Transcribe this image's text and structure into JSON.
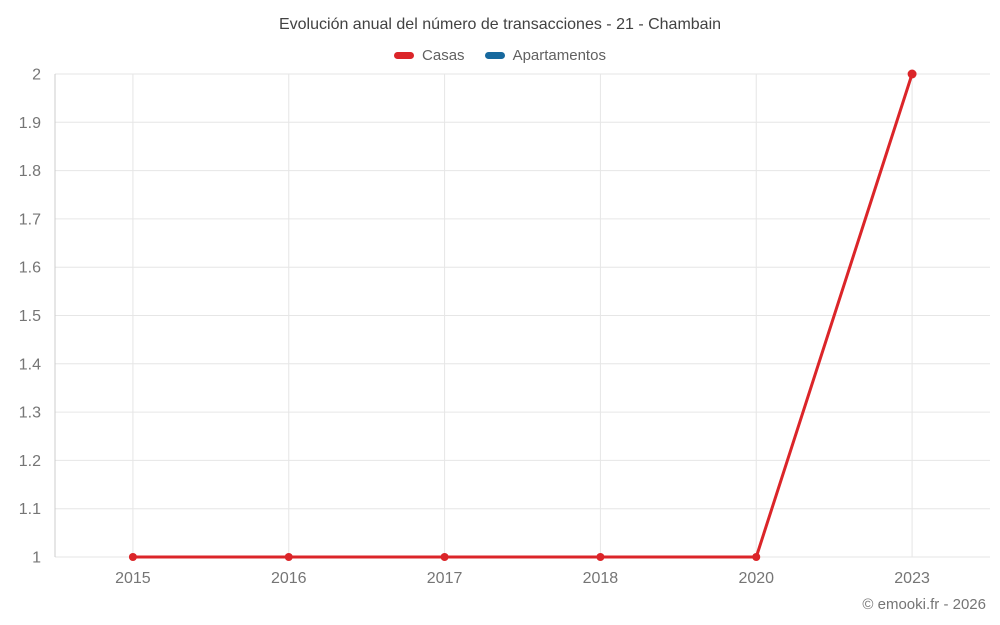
{
  "chart_data": {
    "type": "line",
    "title": "Evolución anual del número de transacciones - 21 - Chambain",
    "categories": [
      "2015",
      "2016",
      "2017",
      "2018",
      "2020",
      "2023"
    ],
    "series": [
      {
        "name": "Casas",
        "color": "#db2529",
        "values": [
          1,
          1,
          1,
          1,
          1,
          2
        ]
      },
      {
        "name": "Apartamentos",
        "color": "#17699e",
        "values": []
      }
    ],
    "xlabel": "",
    "ylabel": "",
    "ylim": [
      1,
      2
    ],
    "y_ticks": [
      1,
      1.1,
      1.2,
      1.3,
      1.4,
      1.5,
      1.6,
      1.7,
      1.8,
      1.9,
      2
    ],
    "y_tick_labels": [
      "1",
      "1.1",
      "1.2",
      "1.3",
      "1.4",
      "1.5",
      "1.6",
      "1.7",
      "1.8",
      "1.9",
      "2"
    ],
    "grid": true,
    "legend_position": "top-center",
    "footer": "© emooki.fr - 2026"
  },
  "colors": {
    "background": "#ffffff",
    "gridline": "#e6e6e6",
    "axis_line": "#cccccc",
    "tick_text": "#757575",
    "title_text": "#424242",
    "legend_text": "#616161",
    "footer_text": "#757575"
  }
}
